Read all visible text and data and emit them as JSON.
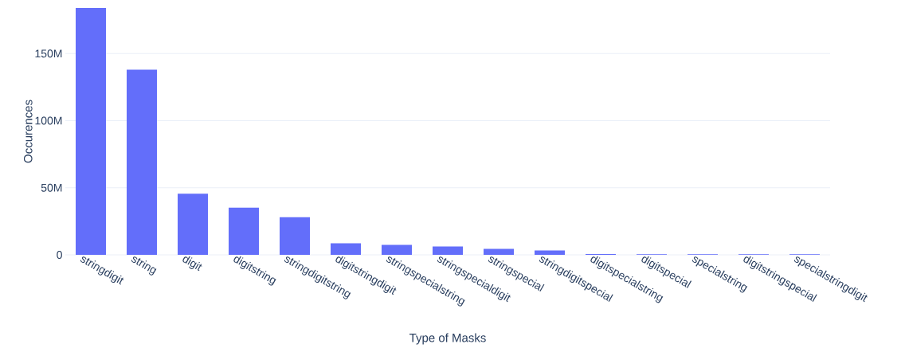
{
  "chart_data": {
    "type": "bar",
    "xlabel": "Type of Masks",
    "ylabel": "Occurences",
    "categories": [
      "stringdigit",
      "string",
      "digit",
      "digitstring",
      "stringdigitstring",
      "digitstringdigit",
      "stringspecialstring",
      "stringspecialdigit",
      "stringspecial",
      "stringdigitspecial",
      "digitspecialstring",
      "digitspecial",
      "specialstring",
      "digitstringspecial",
      "specialstringdigit"
    ],
    "values": [
      184000000,
      138000000,
      45600000,
      35200000,
      28100000,
      8600000,
      7400000,
      6300000,
      4500000,
      3300000,
      600000,
      500000,
      500000,
      500000,
      400000
    ],
    "color": "#636efa",
    "ylim": [
      0,
      184000000
    ],
    "yticks": [
      {
        "value": 0,
        "label": "0"
      },
      {
        "value": 50000000,
        "label": "50M"
      },
      {
        "value": 100000000,
        "label": "100M"
      },
      {
        "value": 150000000,
        "label": "150M"
      }
    ],
    "grid": "y"
  }
}
